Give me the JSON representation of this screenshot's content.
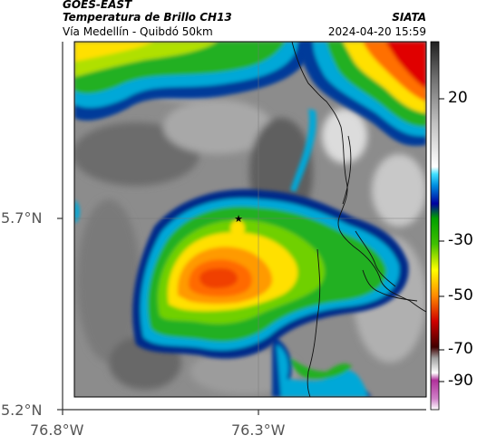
{
  "header": {
    "satellite": "GOES-EAST",
    "product": "Temperatura de Brillo CH13",
    "region": "Vía Medellín - Quibdó 50km",
    "source": "SIATA",
    "timestamp": "2024-04-20 15:59"
  },
  "axes": {
    "lat_labels": [
      "5.7°N",
      "5.2°N"
    ],
    "lon_labels": [
      "76.8°W",
      "76.3°W"
    ]
  },
  "colorbar": {
    "labels": [
      "20",
      "-30",
      "-50",
      "-70",
      "-90"
    ]
  },
  "marker": {
    "symbol": "★",
    "name": "location-star"
  }
}
